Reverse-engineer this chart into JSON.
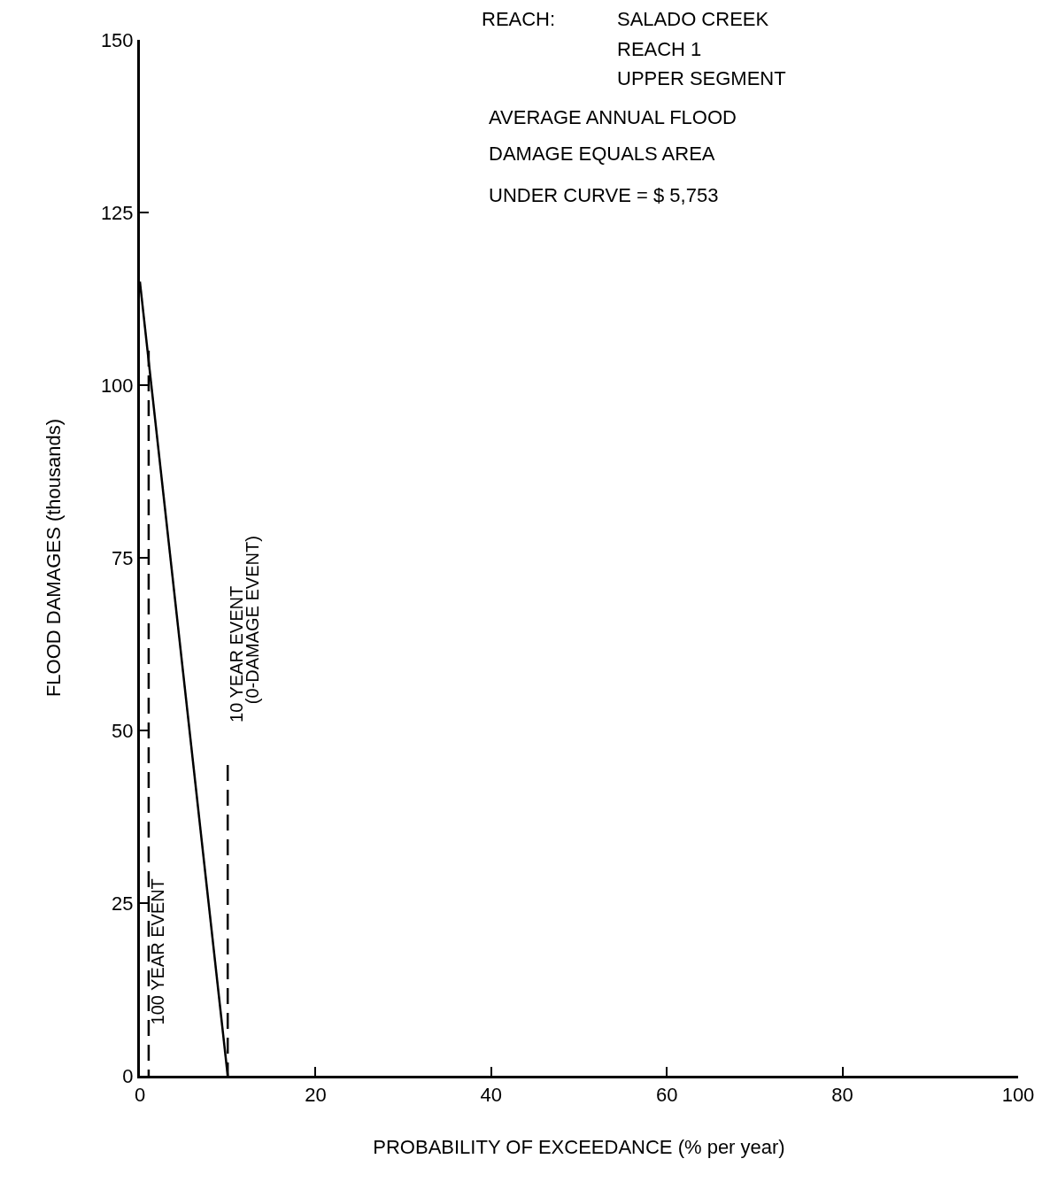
{
  "chart_data": {
    "type": "line",
    "xlabel": "PROBABILITY OF EXCEEDANCE (% per year)",
    "ylabel": "FLOOD DAMAGES (thousands)",
    "xlim": [
      0,
      100
    ],
    "xticks": [
      0,
      20,
      40,
      60,
      80,
      100
    ],
    "ylim": [
      0,
      150
    ],
    "yticks": [
      0,
      25,
      50,
      75,
      100,
      125,
      150
    ],
    "grid": false,
    "marker": "none",
    "series": [
      {
        "color": "#000000",
        "x": [
          0,
          10
        ],
        "values": [
          115,
          0
        ],
        "line_style": "solid"
      },
      {
        "color": "#000000",
        "x": [
          1,
          1
        ],
        "values": [
          105,
          0
        ],
        "line_style": "dashed"
      },
      {
        "color": "#000000",
        "x": [
          10,
          10
        ],
        "values": [
          45,
          0
        ],
        "line_style": "dashed"
      }
    ],
    "annotations": [
      "REACH:",
      "SALADO CREEK",
      "REACH 1",
      "UPPER SEGMENT",
      "AVERAGE ANNUAL FLOOD",
      "DAMAGE EQUALS AREA",
      "UNDER CURVE = $ 5,753",
      "100 YEAR EVENT",
      "10 YEAR EVENT",
      "(0-DAMAGE EVENT)"
    ]
  }
}
